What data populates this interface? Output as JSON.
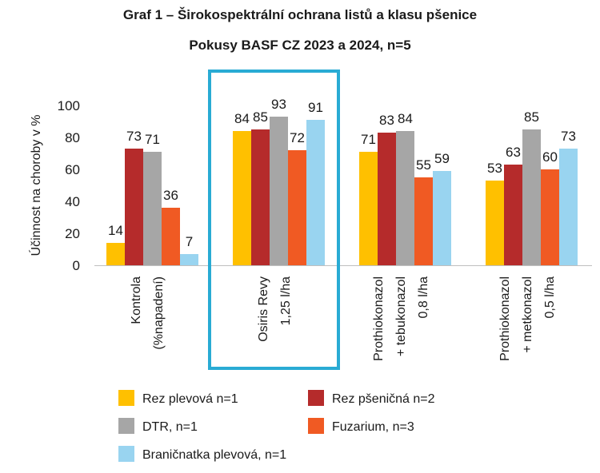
{
  "chart_data": {
    "type": "bar",
    "title": "Graf 1 – Širokospektrální ochrana listů a klasu pšenice",
    "subtitle": "Pokusy BASF CZ 2023 a 2024, n=5",
    "ylabel": "Účinnost na choroby v %",
    "xlabel": "",
    "ylim": [
      0,
      100
    ],
    "yticks": [
      0,
      20,
      40,
      60,
      80,
      100
    ],
    "grid": false,
    "legend_position": "bottom",
    "highlighted_category": 1,
    "highlight_color": "#29ABD4",
    "categories": [
      {
        "lines": [
          "Kontrola",
          "(%napadení)"
        ]
      },
      {
        "lines": [
          "Osiris Revy",
          "1,25 l/ha"
        ]
      },
      {
        "lines": [
          "Prothiokonazol",
          "+ tebukonazol",
          "0,8 l/ha"
        ]
      },
      {
        "lines": [
          "Prothiokonazol",
          "+ metkonazol",
          "0,5 l/ha"
        ]
      }
    ],
    "series": [
      {
        "name": "Rez plevová n=1",
        "color": "#FFC000",
        "values": [
          14,
          84,
          71,
          53
        ]
      },
      {
        "name": "Rez pšeničná n=2",
        "color": "#B52B2B",
        "values": [
          73,
          85,
          83,
          63
        ]
      },
      {
        "name": "DTR, n=1",
        "color": "#A6A6A6",
        "values": [
          71,
          93,
          84,
          85
        ]
      },
      {
        "name": "Fuzarium, n=3",
        "color": "#F05A23",
        "values": [
          36,
          72,
          55,
          60
        ]
      },
      {
        "name": "Braničnatka plevová, n=1",
        "color": "#99D4F0",
        "values": [
          7,
          91,
          59,
          73
        ]
      }
    ]
  }
}
